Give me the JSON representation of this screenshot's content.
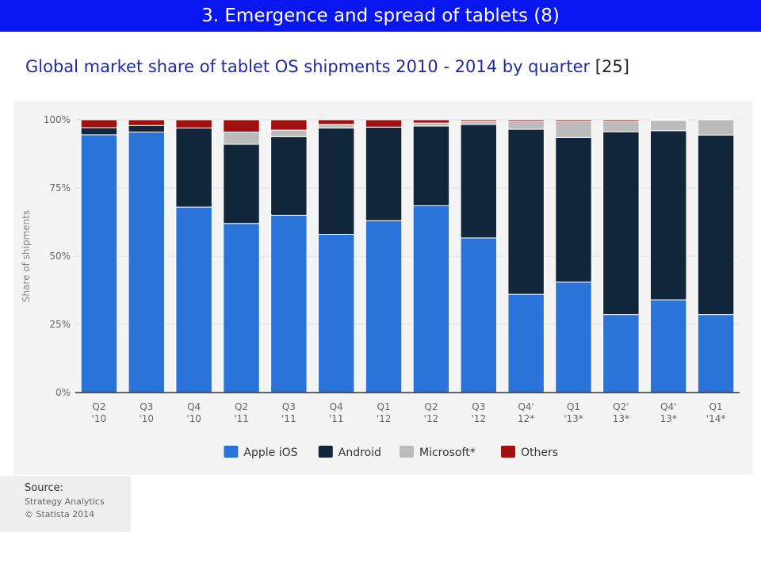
{
  "header": {
    "banner": "3. Emergence and spread of tablets (8)",
    "subtitle": "Global market share of tablet OS shipments 2010 - 2014 by quarter",
    "reference": "[25]"
  },
  "source": {
    "label": "Source:",
    "lines": [
      "Strategy Analytics",
      "© Statista 2014"
    ]
  },
  "chart_data": {
    "type": "bar",
    "stacked": true,
    "ylabel": "Share of shipments",
    "ylim": [
      0,
      100
    ],
    "yticks": [
      "0%",
      "25%",
      "50%",
      "75%",
      "100%"
    ],
    "grid": true,
    "legend_position": "bottom",
    "categories": [
      [
        "Q2",
        "'10"
      ],
      [
        "Q3",
        "'10"
      ],
      [
        "Q4",
        "'10"
      ],
      [
        "Q2",
        "'11"
      ],
      [
        "Q3",
        "'11"
      ],
      [
        "Q4",
        "'11"
      ],
      [
        "Q1",
        "'12"
      ],
      [
        "Q2",
        "'12"
      ],
      [
        "Q3",
        "'12"
      ],
      [
        "Q4'",
        "12*"
      ],
      [
        "Q1",
        "'13*"
      ],
      [
        "Q2'",
        "13*"
      ],
      [
        "Q4'",
        "13*"
      ],
      [
        "Q1",
        "'14*"
      ]
    ],
    "series": [
      {
        "name": "Apple iOS",
        "color": "#2a73d9",
        "values": [
          94.5,
          95.5,
          68,
          62,
          65,
          58,
          63,
          68.5,
          56.7,
          36,
          40.5,
          28.6,
          34,
          28.6
        ]
      },
      {
        "name": "Android",
        "color": "#11263b",
        "values": [
          2.6,
          2.4,
          29,
          29,
          28.8,
          39,
          34.3,
          29.2,
          41.6,
          60.5,
          53,
          67,
          62,
          65.8
        ]
      },
      {
        "name": "Microsoft*",
        "color": "#bbbbbb",
        "values": [
          0,
          0,
          0,
          4.5,
          2.4,
          1.3,
          0,
          1.1,
          1.1,
          2.9,
          5.9,
          3.8,
          3.8,
          5.6
        ]
      },
      {
        "name": "Others",
        "color": "#a01010",
        "values": [
          2.9,
          2.1,
          3,
          4.5,
          3.8,
          1.7,
          2.7,
          1.2,
          0.6,
          0.6,
          0.6,
          0.6,
          0.2,
          0
        ]
      }
    ]
  }
}
